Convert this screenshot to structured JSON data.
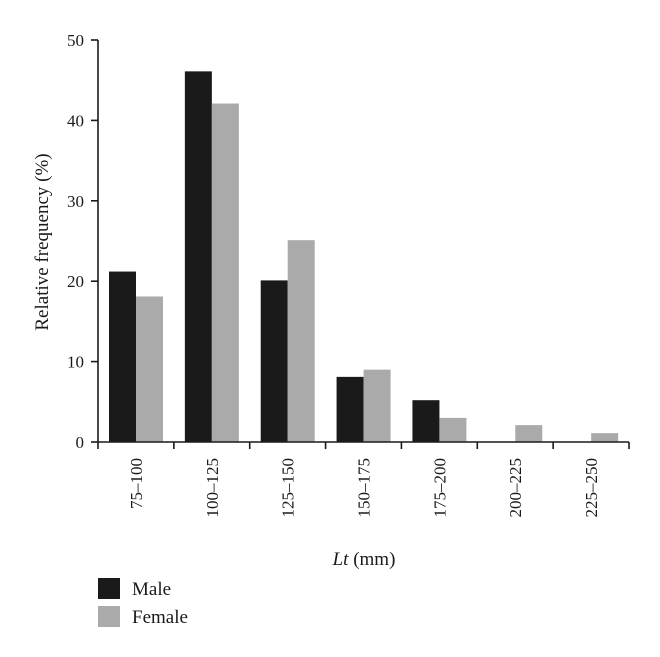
{
  "chart_data": {
    "type": "bar",
    "categories": [
      "75–100",
      "100–125",
      "125–150",
      "150–175",
      "175–200",
      "200–225",
      "225–250"
    ],
    "series": [
      {
        "name": "Male",
        "color": "#1a1a1a",
        "values": [
          21.2,
          46.1,
          20.1,
          8.1,
          5.2,
          0,
          0
        ]
      },
      {
        "name": "Female",
        "color": "#aaaaaa",
        "values": [
          18.1,
          42.1,
          25.1,
          9.0,
          3.0,
          2.1,
          1.1
        ]
      }
    ],
    "title": "",
    "xlabel": {
      "italic": "Lt",
      "rest": " (mm)"
    },
    "ylabel": "Relative frequency (%)",
    "ylim": [
      0,
      50
    ],
    "yticks": [
      "0",
      "10",
      "20",
      "30",
      "40",
      "50"
    ],
    "grid": false,
    "legend_position": "bottom-left"
  }
}
